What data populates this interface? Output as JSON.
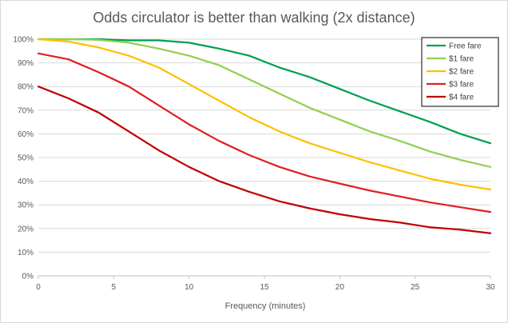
{
  "chart_data": {
    "type": "line",
    "title": "Odds circulator is better than walking (2x distance)",
    "xlabel": "Frequency (minutes)",
    "ylabel": "",
    "xlim": [
      0,
      30
    ],
    "ylim": [
      0,
      100
    ],
    "x_ticks": [
      0,
      5,
      10,
      15,
      20,
      25,
      30
    ],
    "y_ticks": [
      "0%",
      "10%",
      "20%",
      "30%",
      "40%",
      "50%",
      "60%",
      "70%",
      "80%",
      "90%",
      "100%"
    ],
    "grid": "horizontal",
    "legend_position": "top-right",
    "x": [
      0,
      2,
      4,
      6,
      8,
      10,
      12,
      14,
      16,
      18,
      20,
      22,
      24,
      26,
      28,
      30
    ],
    "series": [
      {
        "name": "Free fare",
        "color": "#00a050",
        "values": [
          100,
          100,
          100,
          99.5,
          99.5,
          98.5,
          96,
          93,
          88,
          84,
          79,
          74,
          69.5,
          65,
          60,
          56
        ]
      },
      {
        "name": "$1 fare",
        "color": "#92d050",
        "values": [
          100,
          100,
          99.7,
          98.5,
          96,
          93,
          89,
          83,
          77,
          71,
          66,
          61,
          57,
          52.5,
          49,
          46
        ]
      },
      {
        "name": "$2 fare",
        "color": "#ffc000",
        "values": [
          100,
          99,
          96.5,
          93,
          88,
          81,
          74,
          67,
          61,
          56,
          52,
          48,
          44.5,
          41,
          38.5,
          36.5
        ]
      },
      {
        "name": "$3 fare",
        "color": "#e02020",
        "values": [
          94,
          91.5,
          86,
          80,
          72,
          64,
          57,
          51,
          46,
          42,
          39,
          36,
          33.5,
          31,
          29,
          27
        ]
      },
      {
        "name": "$4 fare",
        "color": "#c00000",
        "values": [
          80,
          75,
          69,
          61,
          53,
          46,
          40,
          35.5,
          31.5,
          28.5,
          26,
          24,
          22.5,
          20.5,
          19.5,
          18
        ]
      }
    ]
  }
}
